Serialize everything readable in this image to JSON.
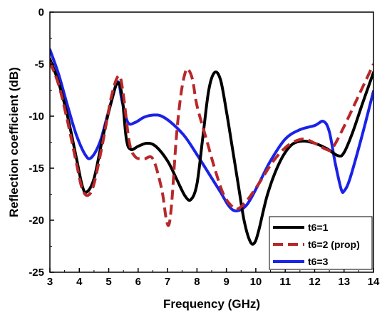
{
  "chart_data": {
    "type": "line",
    "title": "",
    "xlabel": "Frequency (GHz)",
    "ylabel": "Reflection coefficient (dB)",
    "xlim": [
      3,
      14
    ],
    "ylim": [
      -25,
      0
    ],
    "xticks": [
      3,
      4,
      5,
      6,
      7,
      8,
      9,
      10,
      11,
      12,
      13,
      14
    ],
    "yticks": [
      0,
      -5,
      -10,
      -15,
      -20,
      -25
    ],
    "grid": false,
    "legend_position": "bottom-right",
    "series": [
      {
        "name": "t6=1",
        "color": "#000000",
        "style": "solid",
        "points": [
          [
            3,
            -4.5
          ],
          [
            3.3,
            -6.8
          ],
          [
            3.6,
            -10
          ],
          [
            3.9,
            -14
          ],
          [
            4.1,
            -16.7
          ],
          [
            4.25,
            -17.3
          ],
          [
            4.5,
            -16
          ],
          [
            4.8,
            -12
          ],
          [
            5.1,
            -8.5
          ],
          [
            5.3,
            -6.8
          ],
          [
            5.45,
            -8
          ],
          [
            5.6,
            -12.2
          ],
          [
            5.75,
            -13.2
          ],
          [
            6.0,
            -12.9
          ],
          [
            6.3,
            -12.6
          ],
          [
            6.6,
            -12.9
          ],
          [
            7.0,
            -14.3
          ],
          [
            7.3,
            -16
          ],
          [
            7.6,
            -17.7
          ],
          [
            7.8,
            -18
          ],
          [
            8.0,
            -16.5
          ],
          [
            8.2,
            -12
          ],
          [
            8.4,
            -7.5
          ],
          [
            8.6,
            -5.8
          ],
          [
            8.8,
            -6.5
          ],
          [
            9.0,
            -9.5
          ],
          [
            9.2,
            -13
          ],
          [
            9.4,
            -16.5
          ],
          [
            9.6,
            -20
          ],
          [
            9.8,
            -22
          ],
          [
            9.95,
            -22.2
          ],
          [
            10.1,
            -21
          ],
          [
            10.4,
            -17.5
          ],
          [
            10.8,
            -14.5
          ],
          [
            11.2,
            -12.8
          ],
          [
            11.6,
            -12.4
          ],
          [
            12.0,
            -12.6
          ],
          [
            12.4,
            -13.1
          ],
          [
            12.8,
            -13.8
          ],
          [
            13.0,
            -13.5
          ],
          [
            13.3,
            -11.5
          ],
          [
            13.6,
            -9
          ],
          [
            14,
            -5.8
          ]
        ]
      },
      {
        "name": "t6=2 (prop)",
        "color": "#b8282a",
        "style": "dashed",
        "points": [
          [
            3,
            -4.8
          ],
          [
            3.3,
            -7
          ],
          [
            3.6,
            -10.5
          ],
          [
            3.9,
            -14.5
          ],
          [
            4.1,
            -17
          ],
          [
            4.3,
            -17.6
          ],
          [
            4.5,
            -16.5
          ],
          [
            4.8,
            -12.5
          ],
          [
            5.1,
            -8
          ],
          [
            5.35,
            -6.1
          ],
          [
            5.5,
            -8
          ],
          [
            5.7,
            -12.5
          ],
          [
            5.9,
            -13.9
          ],
          [
            6.2,
            -14.1
          ],
          [
            6.5,
            -14.1
          ],
          [
            6.8,
            -17
          ],
          [
            6.95,
            -19.8
          ],
          [
            7.05,
            -20.4
          ],
          [
            7.15,
            -18
          ],
          [
            7.3,
            -12
          ],
          [
            7.45,
            -8
          ],
          [
            7.6,
            -5.8
          ],
          [
            7.7,
            -5.5
          ],
          [
            7.85,
            -6.5
          ],
          [
            8.0,
            -9
          ],
          [
            8.3,
            -12
          ],
          [
            8.6,
            -15
          ],
          [
            8.9,
            -17.5
          ],
          [
            9.2,
            -18.7
          ],
          [
            9.4,
            -18.9
          ],
          [
            9.7,
            -18.1
          ],
          [
            10.1,
            -16.5
          ],
          [
            10.6,
            -14.3
          ],
          [
            11.1,
            -12.8
          ],
          [
            11.6,
            -12.2
          ],
          [
            12.0,
            -12.6
          ],
          [
            12.4,
            -13.2
          ],
          [
            12.6,
            -13.1
          ],
          [
            13.0,
            -11
          ],
          [
            13.5,
            -8
          ],
          [
            14,
            -5
          ]
        ]
      },
      {
        "name": "t6=3",
        "color": "#1a22e8",
        "style": "solid",
        "points": [
          [
            3,
            -3.6
          ],
          [
            3.3,
            -6
          ],
          [
            3.6,
            -9
          ],
          [
            3.9,
            -11.8
          ],
          [
            4.2,
            -13.7
          ],
          [
            4.4,
            -14
          ],
          [
            4.7,
            -12.5
          ],
          [
            5.0,
            -9.5
          ],
          [
            5.3,
            -6.7
          ],
          [
            5.45,
            -8.5
          ],
          [
            5.65,
            -10.6
          ],
          [
            5.9,
            -10.6
          ],
          [
            6.2,
            -10.1
          ],
          [
            6.5,
            -9.9
          ],
          [
            6.8,
            -10
          ],
          [
            7.2,
            -10.8
          ],
          [
            7.6,
            -12
          ],
          [
            8.0,
            -13.7
          ],
          [
            8.4,
            -15.5
          ],
          [
            8.8,
            -17.3
          ],
          [
            9.1,
            -18.7
          ],
          [
            9.35,
            -19.1
          ],
          [
            9.7,
            -18.5
          ],
          [
            10.1,
            -16.5
          ],
          [
            10.5,
            -14.3
          ],
          [
            11.0,
            -12.2
          ],
          [
            11.5,
            -11.3
          ],
          [
            12.0,
            -10.9
          ],
          [
            12.3,
            -10.5
          ],
          [
            12.5,
            -11.5
          ],
          [
            12.7,
            -14.5
          ],
          [
            12.9,
            -17
          ],
          [
            13.0,
            -17.2
          ],
          [
            13.2,
            -16
          ],
          [
            13.6,
            -12
          ],
          [
            14,
            -7.6
          ]
        ]
      }
    ]
  }
}
